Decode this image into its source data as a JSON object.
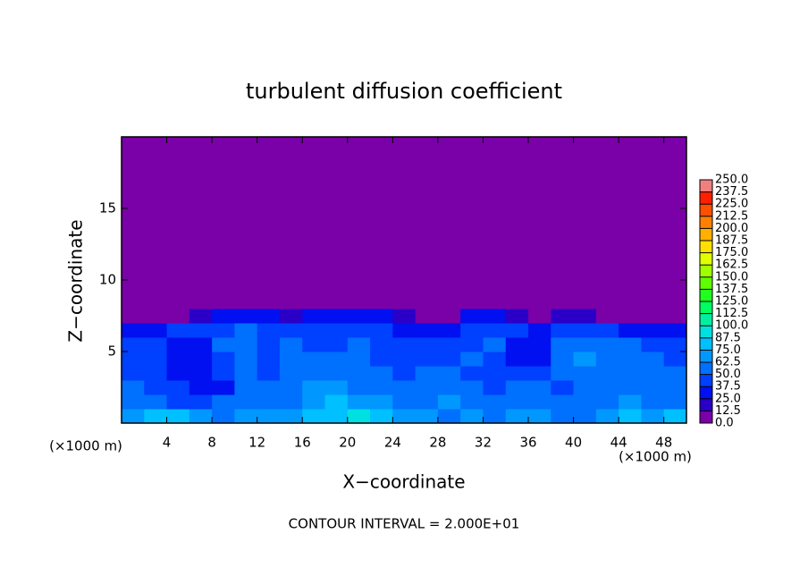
{
  "chart_data": {
    "type": "contour",
    "title": "turbulent diffusion coefficient",
    "xlabel": "X−coordinate",
    "ylabel": "Z−coordinate",
    "x_unit": "(×1000 m)",
    "y_unit": "(×1000 m)",
    "annotation": "CONTOUR INTERVAL = 2.000E+01",
    "xlim": [
      0,
      50
    ],
    "ylim": [
      0,
      20
    ],
    "xticks": [
      4,
      8,
      12,
      16,
      20,
      24,
      28,
      32,
      36,
      40,
      44,
      48
    ],
    "yticks": [
      5,
      10,
      15
    ],
    "x": [
      1,
      3,
      5,
      7,
      9,
      11,
      13,
      15,
      17,
      19,
      21,
      23,
      25,
      27,
      29,
      31,
      33,
      35,
      37,
      39,
      41,
      43,
      45,
      47,
      49
    ],
    "y": [
      0.5,
      1.5,
      2.5,
      3.5,
      4.5,
      5.5,
      6.5,
      7.5,
      8.5,
      9.5,
      10.5,
      11.5,
      12.5,
      13.5,
      14.5,
      15.5,
      16.5,
      17.5,
      18.5,
      19.5
    ],
    "z": [
      [
        70,
        75,
        80,
        70,
        60,
        65,
        70,
        70,
        75,
        80,
        90,
        85,
        70,
        65,
        60,
        70,
        60,
        65,
        70,
        55,
        60,
        65,
        75,
        70,
        75
      ],
      [
        60,
        55,
        45,
        40,
        50,
        60,
        60,
        55,
        70,
        75,
        70,
        65,
        60,
        55,
        65,
        60,
        55,
        60,
        55,
        50,
        60,
        55,
        65,
        60,
        60
      ],
      [
        50,
        45,
        40,
        35,
        35,
        55,
        50,
        50,
        65,
        70,
        60,
        55,
        50,
        50,
        55,
        50,
        45,
        50,
        50,
        45,
        55,
        60,
        60,
        55,
        55
      ],
      [
        45,
        40,
        35,
        30,
        45,
        55,
        45,
        50,
        60,
        60,
        50,
        50,
        45,
        50,
        50,
        45,
        45,
        40,
        40,
        55,
        60,
        55,
        55,
        50,
        50
      ],
      [
        45,
        40,
        30,
        30,
        45,
        50,
        45,
        55,
        55,
        55,
        50,
        45,
        45,
        45,
        45,
        50,
        40,
        35,
        30,
        55,
        65,
        50,
        55,
        50,
        45
      ],
      [
        40,
        40,
        30,
        35,
        50,
        55,
        45,
        50,
        45,
        45,
        50,
        45,
        40,
        45,
        40,
        45,
        55,
        30,
        30,
        50,
        60,
        55,
        50,
        45,
        40
      ],
      [
        30,
        35,
        40,
        45,
        45,
        50,
        40,
        45,
        40,
        40,
        45,
        40,
        35,
        35,
        30,
        45,
        45,
        40,
        30,
        45,
        45,
        40,
        35,
        30,
        25
      ],
      [
        0,
        0,
        5,
        20,
        25,
        30,
        30,
        20,
        25,
        35,
        30,
        25,
        20,
        10,
        5,
        25,
        30,
        20,
        5,
        15,
        20,
        10,
        5,
        0,
        0
      ],
      [
        0,
        0,
        0,
        0,
        0,
        0,
        0,
        0,
        0,
        0,
        0,
        0,
        0,
        0,
        0,
        0,
        0,
        0,
        0,
        0,
        0,
        0,
        0,
        0,
        0
      ],
      [
        0,
        0,
        0,
        0,
        0,
        0,
        0,
        0,
        0,
        0,
        0,
        0,
        0,
        0,
        0,
        0,
        0,
        0,
        0,
        0,
        0,
        0,
        0,
        0,
        0
      ],
      [
        0,
        0,
        0,
        0,
        0,
        0,
        0,
        0,
        0,
        0,
        0,
        0,
        0,
        0,
        0,
        0,
        0,
        0,
        0,
        0,
        0,
        0,
        0,
        0,
        0
      ],
      [
        0,
        0,
        0,
        0,
        0,
        0,
        0,
        0,
        0,
        0,
        0,
        0,
        0,
        0,
        0,
        0,
        0,
        0,
        0,
        0,
        0,
        0,
        0,
        0,
        0
      ],
      [
        0,
        0,
        0,
        0,
        0,
        0,
        0,
        0,
        0,
        0,
        0,
        0,
        0,
        0,
        0,
        0,
        0,
        0,
        0,
        0,
        0,
        0,
        0,
        0,
        0
      ],
      [
        0,
        0,
        0,
        0,
        0,
        0,
        0,
        0,
        0,
        0,
        0,
        0,
        0,
        0,
        0,
        0,
        0,
        0,
        0,
        0,
        0,
        0,
        0,
        0,
        0
      ],
      [
        0,
        0,
        0,
        0,
        0,
        0,
        0,
        0,
        0,
        0,
        0,
        0,
        0,
        0,
        0,
        0,
        0,
        0,
        0,
        0,
        0,
        0,
        0,
        0,
        0
      ],
      [
        0,
        0,
        0,
        0,
        0,
        0,
        0,
        0,
        0,
        0,
        0,
        0,
        0,
        0,
        0,
        0,
        0,
        0,
        0,
        0,
        0,
        0,
        0,
        0,
        0
      ],
      [
        0,
        0,
        0,
        0,
        0,
        0,
        0,
        0,
        0,
        0,
        0,
        0,
        0,
        0,
        0,
        0,
        0,
        0,
        0,
        0,
        0,
        0,
        0,
        0,
        0
      ],
      [
        0,
        0,
        0,
        0,
        0,
        0,
        0,
        0,
        0,
        0,
        0,
        0,
        0,
        0,
        0,
        0,
        0,
        0,
        0,
        0,
        0,
        0,
        0,
        0,
        0
      ],
      [
        0,
        0,
        0,
        0,
        0,
        0,
        0,
        0,
        0,
        0,
        0,
        0,
        0,
        0,
        0,
        0,
        0,
        0,
        0,
        0,
        0,
        0,
        0,
        0,
        0
      ],
      [
        0,
        0,
        0,
        0,
        0,
        0,
        0,
        0,
        0,
        0,
        0,
        0,
        0,
        0,
        0,
        0,
        0,
        0,
        0,
        0,
        0,
        0,
        0,
        0,
        0
      ]
    ],
    "colorbar_ticks": [
      {
        "value": 0,
        "label": "0.0"
      },
      12.5,
      {
        "value": 25,
        "label": "25.0"
      },
      37.5,
      {
        "value": 50,
        "label": "50.0"
      },
      62.5,
      {
        "value": 75,
        "label": "75.0"
      },
      87.5,
      {
        "value": 100,
        "label": "100.0"
      },
      112.5,
      {
        "value": 125,
        "label": "125.0"
      },
      137.5,
      {
        "value": 150,
        "label": "150.0"
      },
      162.5,
      {
        "value": 175,
        "label": "175.0"
      },
      187.5,
      {
        "value": 200,
        "label": "200.0"
      },
      212.5,
      {
        "value": 225,
        "label": "225.0"
      },
      237.5,
      {
        "value": 250,
        "label": "250.0"
      }
    ],
    "colors": [
      "#7a00a8",
      "#2a00c8",
      "#0010f0",
      "#0040ff",
      "#0070ff",
      "#0098ff",
      "#00c0ff",
      "#00e0e0",
      "#00f0a0",
      "#00ff60",
      "#20ff20",
      "#60ff00",
      "#a0ff00",
      "#e0ff00",
      "#ffe000",
      "#ffb000",
      "#ff8000",
      "#ff5000",
      "#ff2000",
      "#f08080"
    ]
  }
}
